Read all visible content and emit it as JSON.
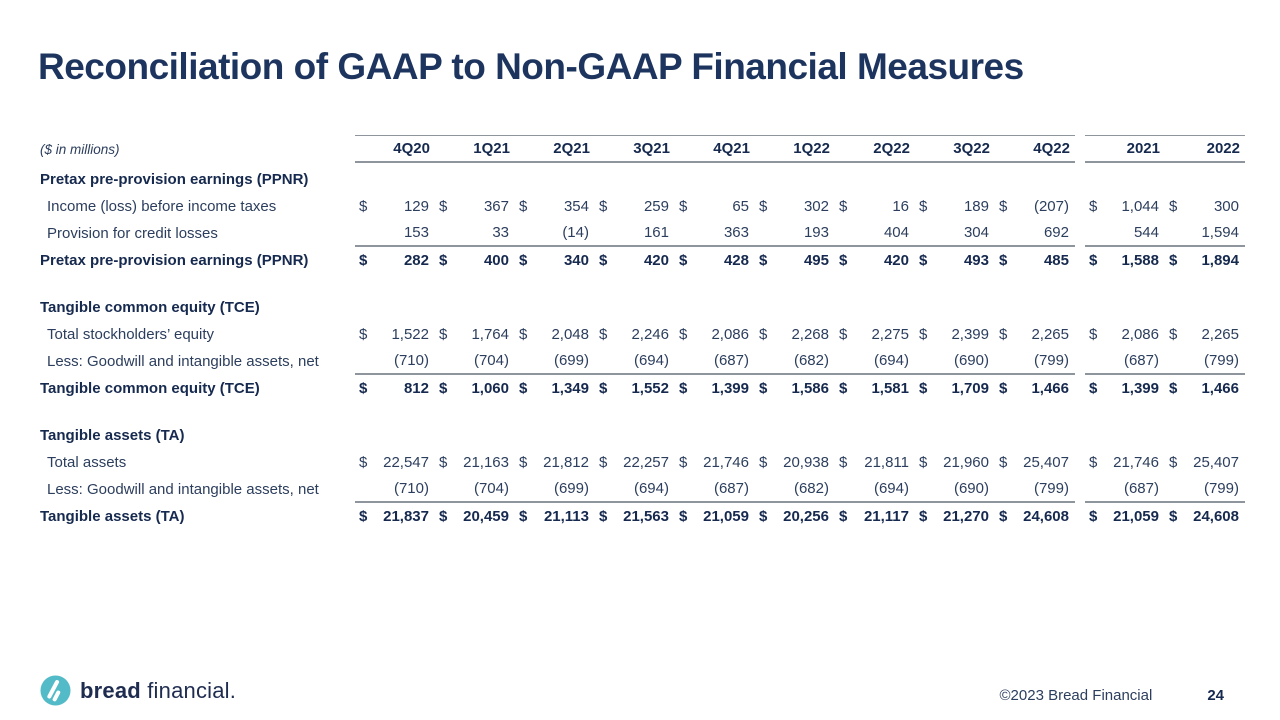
{
  "slide": {
    "title": "Reconciliation of GAAP to Non-GAAP Financial Measures"
  },
  "footer": {
    "brand_bold": "bread",
    "brand_regular": "financial",
    "brand_suffix": ".",
    "copyright": "©2023 Bread Financial",
    "page_number": "24"
  },
  "colors": {
    "navy": "#1d355e",
    "rule_gray": "#8e959c",
    "logo_teal": "#53bac7"
  },
  "icons": {
    "logo_mark": "bread-financial-circle-b-icon"
  },
  "table": {
    "units_note": "($ in millions)",
    "quarter_headers": [
      "4Q20",
      "1Q21",
      "2Q21",
      "3Q21",
      "4Q21",
      "1Q22",
      "2Q22",
      "3Q22",
      "4Q22"
    ],
    "year_headers": [
      "2021",
      "2022"
    ],
    "sections": [
      {
        "header": "Pretax pre-provision earnings (PPNR)",
        "rows": [
          {
            "label": "Income (loss) before income taxes",
            "dollar": true,
            "bold": false,
            "underline": false,
            "quarters": [
              "129",
              "367",
              "354",
              "259",
              "65",
              "302",
              "16",
              "189",
              "(207)"
            ],
            "years": [
              "1,044",
              "300"
            ]
          },
          {
            "label": "Provision for credit losses",
            "dollar": false,
            "bold": false,
            "underline": true,
            "quarters": [
              "153",
              "33",
              "(14)",
              "161",
              "363",
              "193",
              "404",
              "304",
              "692"
            ],
            "years": [
              "544",
              "1,594"
            ]
          },
          {
            "label": "Pretax pre-provision earnings (PPNR)",
            "dollar": true,
            "bold": true,
            "underline": false,
            "quarters": [
              "282",
              "400",
              "340",
              "420",
              "428",
              "495",
              "420",
              "493",
              "485"
            ],
            "years": [
              "1,588",
              "1,894"
            ]
          }
        ]
      },
      {
        "header": "Tangible common equity (TCE)",
        "rows": [
          {
            "label": "Total stockholders’ equity",
            "dollar": true,
            "bold": false,
            "underline": false,
            "quarters": [
              "1,522",
              "1,764",
              "2,048",
              "2,246",
              "2,086",
              "2,268",
              "2,275",
              "2,399",
              "2,265"
            ],
            "years": [
              "2,086",
              "2,265"
            ]
          },
          {
            "label": "Less: Goodwill and intangible assets, net",
            "dollar": false,
            "bold": false,
            "underline": true,
            "quarters": [
              "(710)",
              "(704)",
              "(699)",
              "(694)",
              "(687)",
              "(682)",
              "(694)",
              "(690)",
              "(799)"
            ],
            "years": [
              "(687)",
              "(799)"
            ]
          },
          {
            "label": "Tangible common equity (TCE)",
            "dollar": true,
            "bold": true,
            "underline": false,
            "quarters": [
              "812",
              "1,060",
              "1,349",
              "1,552",
              "1,399",
              "1,586",
              "1,581",
              "1,709",
              "1,466"
            ],
            "years": [
              "1,399",
              "1,466"
            ]
          }
        ]
      },
      {
        "header": "Tangible assets (TA)",
        "rows": [
          {
            "label": "Total assets",
            "dollar": true,
            "bold": false,
            "underline": false,
            "quarters": [
              "22,547",
              "21,163",
              "21,812",
              "22,257",
              "21,746",
              "20,938",
              "21,811",
              "21,960",
              "25,407"
            ],
            "years": [
              "21,746",
              "25,407"
            ]
          },
          {
            "label": "Less: Goodwill and intangible assets, net",
            "dollar": false,
            "bold": false,
            "underline": true,
            "quarters": [
              "(710)",
              "(704)",
              "(699)",
              "(694)",
              "(687)",
              "(682)",
              "(694)",
              "(690)",
              "(799)"
            ],
            "years": [
              "(687)",
              "(799)"
            ]
          },
          {
            "label": "Tangible assets (TA)",
            "dollar": true,
            "bold": true,
            "underline": false,
            "quarters": [
              "21,837",
              "20,459",
              "21,113",
              "21,563",
              "21,059",
              "20,256",
              "21,117",
              "21,270",
              "24,608"
            ],
            "years": [
              "21,059",
              "24,608"
            ]
          }
        ]
      }
    ]
  }
}
